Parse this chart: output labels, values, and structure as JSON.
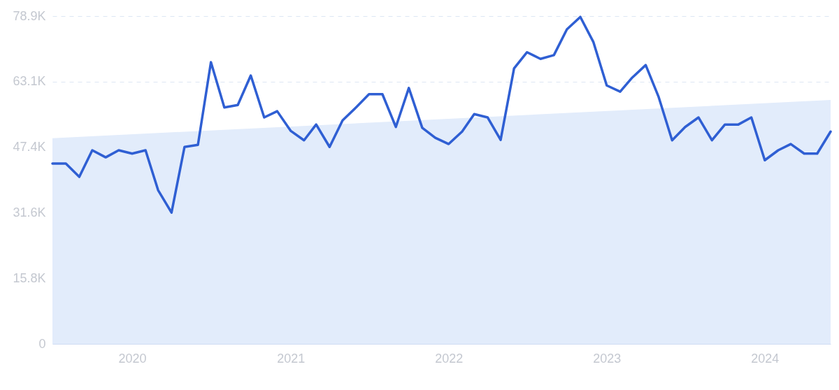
{
  "chart_data": {
    "type": "line",
    "x": [
      "2019-07",
      "2019-08",
      "2019-09",
      "2019-10",
      "2019-11",
      "2019-12",
      "2020-01",
      "2020-02",
      "2020-03",
      "2020-04",
      "2020-05",
      "2020-06",
      "2020-07",
      "2020-08",
      "2020-09",
      "2020-10",
      "2020-11",
      "2020-12",
      "2021-01",
      "2021-02",
      "2021-03",
      "2021-04",
      "2021-05",
      "2021-06",
      "2021-07",
      "2021-08",
      "2021-09",
      "2021-10",
      "2021-11",
      "2021-12",
      "2022-01",
      "2022-02",
      "2022-03",
      "2022-04",
      "2022-05",
      "2022-06",
      "2022-07",
      "2022-08",
      "2022-09",
      "2022-10",
      "2022-11",
      "2022-12",
      "2023-01",
      "2023-02",
      "2023-03",
      "2023-04",
      "2023-05",
      "2023-06",
      "2023-07",
      "2023-08",
      "2023-09",
      "2023-10",
      "2023-11",
      "2023-12",
      "2024-01",
      "2024-02",
      "2024-03",
      "2024-04",
      "2024-05",
      "2024-06"
    ],
    "series": [
      {
        "type": "area",
        "color": "#e2ecfb",
        "x": [
          "2019-07",
          "2024-06"
        ],
        "values": [
          49500,
          58700
        ]
      },
      {
        "color": "#2f5fd3",
        "values": [
          43400,
          43400,
          40200,
          46600,
          44900,
          46600,
          45800,
          46600,
          37000,
          31600,
          47400,
          47900,
          67800,
          56900,
          57500,
          64600,
          54500,
          56000,
          51300,
          49000,
          52800,
          47400,
          53800,
          56900,
          60100,
          60100,
          52200,
          61600,
          52000,
          49600,
          48100,
          51100,
          55300,
          54500,
          49100,
          66300,
          70200,
          68600,
          69500,
          75700,
          78700,
          72700,
          62200,
          60700,
          64100,
          67100,
          59400,
          49000,
          52200,
          54500,
          49000,
          52800,
          52800,
          54500,
          44200,
          46600,
          48100,
          45800,
          45800,
          51100
        ]
      }
    ],
    "xlim": [
      "2019-07",
      "2024-06"
    ],
    "xticks": [
      {
        "value": "2020-01",
        "label": "2020"
      },
      {
        "value": "2021-01",
        "label": "2021"
      },
      {
        "value": "2022-01",
        "label": "2022"
      },
      {
        "value": "2023-01",
        "label": "2023"
      },
      {
        "value": "2024-01",
        "label": "2024"
      }
    ],
    "ylim": [
      0,
      78900
    ],
    "yticks": [
      0,
      {
        "value": 15800,
        "label": "15.8K"
      },
      {
        "value": 31600,
        "label": "31.6K"
      },
      {
        "value": 47400,
        "label": "47.4K"
      },
      {
        "value": 63100,
        "label": "63.1K"
      },
      {
        "value": 78900,
        "label": "78.9K"
      }
    ],
    "grid": "y"
  }
}
